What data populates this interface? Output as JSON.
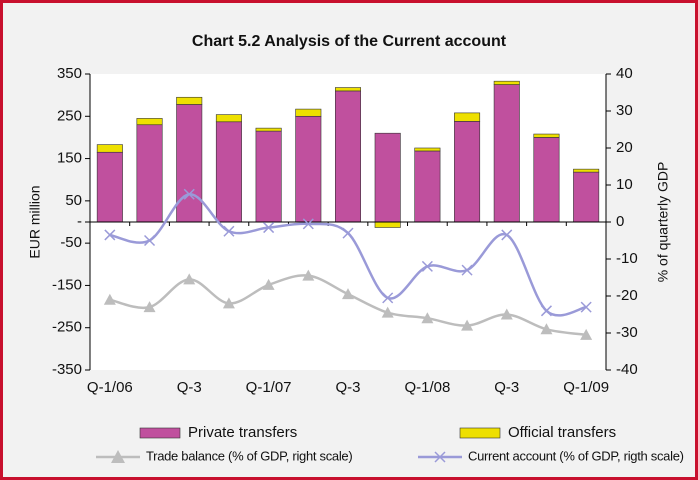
{
  "chart_data": {
    "type": "bar-line",
    "title": "Chart 5.2 Analysis of the Current account",
    "ylabel": "EUR million",
    "y2label": "% of quarterly GDP",
    "categories": [
      "Q-1/06",
      null,
      "Q-3",
      null,
      "Q-1/07",
      null,
      "Q-3",
      null,
      "Q-1/08",
      null,
      "Q-3",
      null,
      "Q-1/09"
    ],
    "series": [
      {
        "name": "Private transfers",
        "color": "#c0509e",
        "kind": "bar",
        "values": [
          165,
          230,
          278,
          237,
          215,
          250,
          310,
          210,
          168,
          238,
          325,
          200,
          118
        ]
      },
      {
        "name": "Official transfers",
        "color": "#eee000",
        "kind": "bar",
        "values": [
          18,
          15,
          17,
          17,
          7,
          17,
          8,
          -13,
          7,
          20,
          8,
          8,
          7
        ]
      },
      {
        "name": "Trade balance (% of GDP, right scale)",
        "color": "#bdbdbd",
        "kind": "line",
        "marker": "triangle",
        "axis": "y2",
        "values": [
          -21,
          -23,
          -15.5,
          -22,
          -17,
          -14.5,
          -19.5,
          -24.5,
          -26,
          -28,
          -25,
          -29,
          -30.5
        ]
      },
      {
        "name": "Current account (% of GDP, rigth scale)",
        "color": "#9a9ad8",
        "kind": "line",
        "marker": "x",
        "axis": "y2",
        "values": [
          -3.5,
          -5,
          7.5,
          -2.5,
          -1.5,
          -0.5,
          -3,
          -20.5,
          -12,
          -13,
          -3.5,
          -24,
          -23
        ]
      }
    ],
    "ylim": [
      -350,
      350
    ],
    "yticks": [
      350,
      250,
      150,
      50,
      {
        "value": 0,
        "label": "-"
      },
      -50,
      -150,
      -250,
      -350
    ],
    "y2lim": [
      -40,
      40
    ],
    "y2ticks": [
      40,
      30,
      20,
      10,
      0,
      -10,
      -20,
      -30,
      -40
    ]
  }
}
